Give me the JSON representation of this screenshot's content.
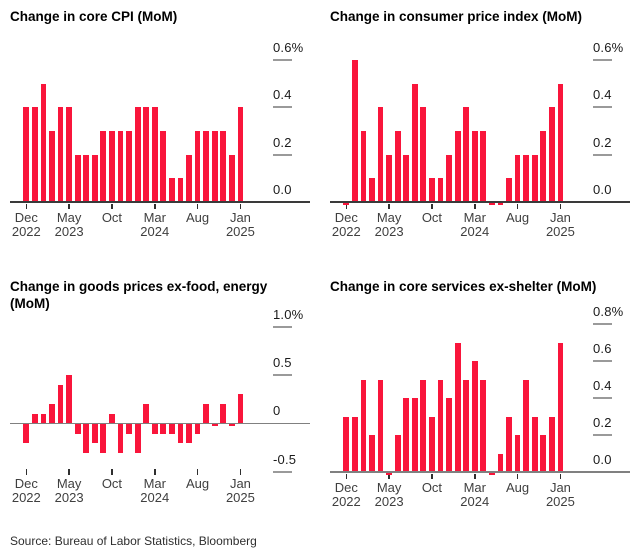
{
  "page": {
    "source_line": "Source: Bureau of Labor Statistics, Bloomberg",
    "background": "#ffffff",
    "bar_color": "#f9153b"
  },
  "categories": [
    "Dec 2022",
    "Jan 2023",
    "Feb 2023",
    "Mar 2023",
    "Apr 2023",
    "May 2023",
    "Jun 2023",
    "Jul 2023",
    "Aug 2023",
    "Sep 2023",
    "Oct 2023",
    "Nov 2023",
    "Dec 2023",
    "Jan 2024",
    "Feb 2024",
    "Mar 2024",
    "Apr 2024",
    "May 2024",
    "Jun 2024",
    "Jul 2024",
    "Aug 2024",
    "Sep 2024",
    "Oct 2024",
    "Nov 2024",
    "Dec 2024",
    "Jan 2025"
  ],
  "x_ticks": [
    {
      "index": 0,
      "line1": "Dec",
      "line2": "2022"
    },
    {
      "index": 5,
      "line1": "May",
      "line2": "2023"
    },
    {
      "index": 10,
      "line1": "Oct",
      "line2": ""
    },
    {
      "index": 15,
      "line1": "Mar",
      "line2": "2024"
    },
    {
      "index": 20,
      "line1": "Aug",
      "line2": ""
    },
    {
      "index": 25,
      "line1": "Jan",
      "line2": "2025"
    }
  ],
  "chart_data": [
    {
      "type": "bar",
      "title": "Change in core CPI (MoM)",
      "ylabel": "percent change month over month",
      "ylim": [
        0,
        0.65
      ],
      "grid": "right-dash-ticks",
      "yticks": [
        {
          "value": 0.6,
          "label": "0.6%"
        },
        {
          "value": 0.4,
          "label": "0.4"
        },
        {
          "value": 0.2,
          "label": "0.2"
        },
        {
          "value": 0.0,
          "label": "0.0"
        }
      ],
      "values": [
        0.4,
        0.4,
        0.5,
        0.3,
        0.4,
        0.4,
        0.2,
        0.2,
        0.2,
        0.3,
        0.3,
        0.3,
        0.3,
        0.4,
        0.4,
        0.4,
        0.3,
        0.1,
        0.1,
        0.2,
        0.3,
        0.3,
        0.3,
        0.3,
        0.2,
        0.4
      ]
    },
    {
      "type": "bar",
      "title": "Change in consumer price index (MoM)",
      "ylabel": "percent change month over month",
      "ylim": [
        0,
        0.65
      ],
      "grid": "right-dash-ticks",
      "yticks": [
        {
          "value": 0.6,
          "label": "0.6%"
        },
        {
          "value": 0.4,
          "label": "0.4"
        },
        {
          "value": 0.2,
          "label": "0.2"
        },
        {
          "value": 0.0,
          "label": "0.0"
        }
      ],
      "values": [
        0.0,
        0.6,
        0.3,
        0.1,
        0.4,
        0.2,
        0.3,
        0.2,
        0.5,
        0.4,
        0.1,
        0.1,
        0.2,
        0.3,
        0.4,
        0.3,
        0.3,
        0.0,
        0.0,
        0.1,
        0.2,
        0.2,
        0.2,
        0.3,
        0.4,
        0.5
      ]
    },
    {
      "type": "bar",
      "title": "Change in goods prices ex-food, energy (MoM)",
      "ylabel": "percent change month over month",
      "ylim": [
        -0.5,
        1.0
      ],
      "grid": "right-dash-ticks",
      "yticks": [
        {
          "value": 1.0,
          "label": "1.0%"
        },
        {
          "value": 0.5,
          "label": "0.5"
        },
        {
          "value": 0.0,
          "label": "0"
        },
        {
          "value": -0.5,
          "label": "-0.5"
        }
      ],
      "values": [
        -0.2,
        0.1,
        0.1,
        0.2,
        0.4,
        0.5,
        -0.1,
        -0.3,
        -0.2,
        -0.3,
        0.1,
        -0.3,
        -0.1,
        -0.3,
        0.2,
        -0.1,
        -0.1,
        -0.1,
        -0.2,
        -0.2,
        -0.1,
        0.2,
        0.0,
        0.2,
        0.0,
        0.3
      ]
    },
    {
      "type": "bar",
      "title": "Change in core services ex-shelter (MoM)",
      "ylabel": "percent change month over month",
      "ylim": [
        0,
        0.8
      ],
      "grid": "right-dash-ticks",
      "yticks": [
        {
          "value": 0.8,
          "label": "0.8%"
        },
        {
          "value": 0.6,
          "label": "0.6"
        },
        {
          "value": 0.4,
          "label": "0.4"
        },
        {
          "value": 0.2,
          "label": "0.2"
        },
        {
          "value": 0.0,
          "label": "0.0"
        }
      ],
      "values": [
        0.3,
        0.3,
        0.5,
        0.2,
        0.5,
        0.0,
        0.2,
        0.4,
        0.4,
        0.5,
        0.3,
        0.5,
        0.4,
        0.7,
        0.5,
        0.6,
        0.5,
        0.0,
        0.1,
        0.3,
        0.2,
        0.5,
        0.3,
        0.2,
        0.3,
        0.7
      ]
    }
  ]
}
